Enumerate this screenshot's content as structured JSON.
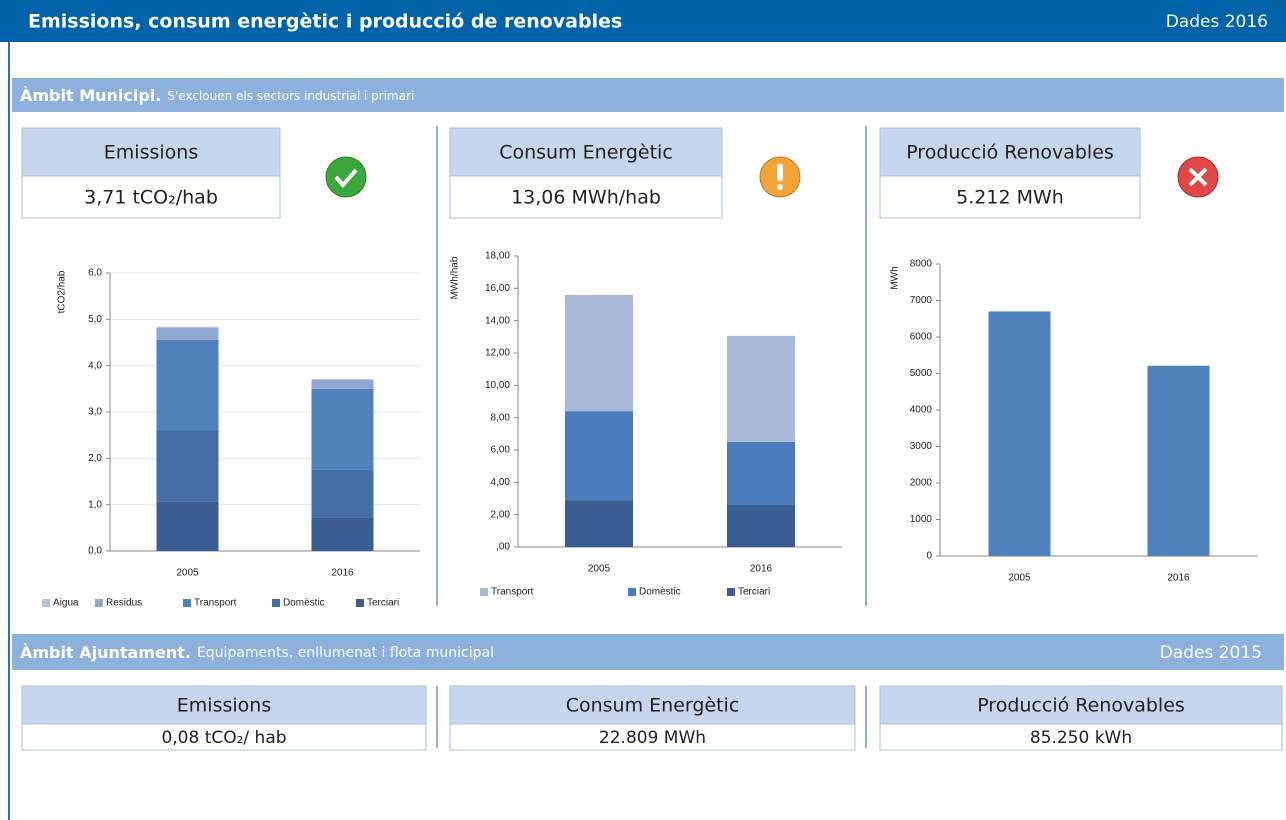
{
  "header": {
    "title": "Emissions, consum energètic i producció de renovables",
    "year": "Dades 2016"
  },
  "municipi": {
    "title": "Àmbit Municipi.",
    "subtitle": "S'exclouen els sectors industrial i primari",
    "panels": [
      {
        "title": "Emissions",
        "value": "3,71  tCO₂/hab",
        "status": "ok",
        "chart": {
          "type": "bar",
          "stacked": true,
          "y_label": "tCO2/hab",
          "categories": [
            "2005",
            "2016"
          ],
          "series": [
            {
              "name": "Aigua",
              "color": "#b4c3df",
              "values": [
                0.02,
                0.02
              ]
            },
            {
              "name": "Residus",
              "color": "#8fa8d2",
              "values": [
                0.26,
                0.19
              ]
            },
            {
              "name": "Transport",
              "color": "#4f81bd",
              "values": [
                1.95,
                1.75
              ]
            },
            {
              "name": "Domèstic",
              "color": "#446fa6",
              "values": [
                1.55,
                1.02
              ]
            },
            {
              "name": "Terciari",
              "color": "#3a5e92",
              "values": [
                1.06,
                0.73
              ]
            }
          ],
          "ylim": [
            0,
            6
          ],
          "yticks": [
            {
              "value": 0,
              "label": "0,0"
            },
            {
              "value": 1,
              "label": "1,0"
            },
            {
              "value": 2,
              "label": "2,0"
            },
            {
              "value": 3,
              "label": "3,0"
            },
            {
              "value": 4,
              "label": "4,0"
            },
            {
              "value": 5,
              "label": "5,0"
            },
            {
              "value": 6,
              "label": "6,0"
            }
          ],
          "grid": true,
          "legend": "bottom"
        }
      },
      {
        "title": "Consum Energètic",
        "value": "13,06  MWh/hab",
        "status": "warning",
        "chart": {
          "type": "bar",
          "stacked": true,
          "y_label": "MWh/hab",
          "categories": [
            "2005",
            "2016"
          ],
          "series": [
            {
              "name": "Transport",
              "color": "#a9bad9",
              "values": [
                7.2,
                6.56
              ]
            },
            {
              "name": "Domèstic",
              "color": "#4a7bbb",
              "values": [
                5.5,
                3.9
              ]
            },
            {
              "name": "Terciari",
              "color": "#3a5e92",
              "values": [
                2.9,
                2.6
              ]
            }
          ],
          "ylim": [
            0,
            18
          ],
          "yticks": [
            {
              "value": 0,
              "label": ",00"
            },
            {
              "value": 2,
              "label": "2,00"
            },
            {
              "value": 4,
              "label": "4,00"
            },
            {
              "value": 6,
              "label": "6,00"
            },
            {
              "value": 8,
              "label": "8,00"
            },
            {
              "value": 10,
              "label": "10,00"
            },
            {
              "value": 12,
              "label": "12,00"
            },
            {
              "value": 14,
              "label": "14,00"
            },
            {
              "value": 16,
              "label": "16,00"
            },
            {
              "value": 18,
              "label": "18,00"
            }
          ],
          "grid": false,
          "legend": "bottom"
        }
      },
      {
        "title": "Producció Renovables",
        "value": "5.212  MWh",
        "status": "error",
        "chart": {
          "type": "bar",
          "y_label": "MWh",
          "categories": [
            "2005",
            "2016"
          ],
          "values": [
            6700,
            5212
          ],
          "color": "#4f81bd",
          "ylim": [
            0,
            8000
          ],
          "yticks": [
            0,
            1000,
            2000,
            3000,
            4000,
            5000,
            6000,
            7000,
            8000
          ],
          "grid": false
        }
      }
    ]
  },
  "ajuntament": {
    "title": "Àmbit Ajuntament.",
    "subtitle": "Equipaments, enllumenat i flota municipal",
    "year": "Dades 2015",
    "panels": [
      {
        "title": "Emissions",
        "value": "0,08 tCO₂/ hab"
      },
      {
        "title": "Consum Energètic",
        "value": "22.809  MWh"
      },
      {
        "title": "Producció Renovables",
        "value": "85.250  kWh"
      }
    ]
  }
}
